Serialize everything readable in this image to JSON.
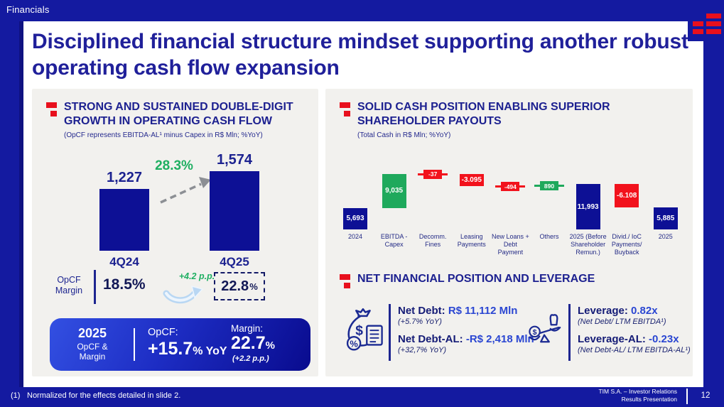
{
  "slide": {
    "section_label": "Financials"
  },
  "title": "Disciplined financial structure mindset supporting another robust operating cash flow expansion",
  "left_panel": {
    "heading": "STRONG AND SUSTAINED DOUBLE-DIGIT GROWTH IN OPERATING CASH FLOW",
    "subtitle": "(OpCF represents EBITDA-AL¹ minus Capex in R$ Mln; %YoY)",
    "margin_row": {
      "label": "OpCF Margin",
      "value_4q24": "18.5%",
      "delta": "+4.2 p.p.",
      "value_4q25": "22.8",
      "value_4q25_suffix": "%"
    },
    "summary_box": {
      "year": "2025",
      "caption_line1": "OpCF &",
      "caption_line2": "Margin",
      "opcf_label": "OpCF:",
      "opcf_value": "+15.7",
      "opcf_suffix": "% YoY",
      "margin_label": "Margin:",
      "margin_value": "22.7",
      "margin_suffix": "%",
      "margin_note": "(+2.2 p.p.)"
    }
  },
  "right_panel": {
    "heading": "SOLID CASH POSITION ENABLING SUPERIOR SHAREHOLDER PAYOUTS",
    "subtitle": "(Total Cash in R$ Mln; %YoY)",
    "nfp_heading": "NET FINANCIAL POSITION AND LEVERAGE",
    "metrics": {
      "net_debt_label": "Net Debt:",
      "net_debt_value": "R$ 11,112 Mln",
      "net_debt_note": "(+5.7% YoY)",
      "net_debt_al_label": "Net Debt-AL:",
      "net_debt_al_value": "-R$ 2,418 Mln",
      "net_debt_al_note": "(+32,7% YoY)",
      "leverage_label": "Leverage:",
      "leverage_value": "0.82x",
      "leverage_note": "(Net Debt/ LTM EBITDA¹)",
      "leverage_al_label": "Leverage-AL:",
      "leverage_al_value": "-0.23x",
      "leverage_al_note": "(Net Debt-AL/ LTM EBITDA-AL¹)"
    }
  },
  "chart_data": [
    {
      "type": "bar",
      "title": "Operating Cash Flow (OpCF = EBITDA-AL minus Capex, R$ Mln)",
      "categories": [
        "4Q24",
        "4Q25"
      ],
      "values": [
        1227,
        1574
      ],
      "value_labels": [
        "1,227",
        "1,574"
      ],
      "growth_yoy": "28.3%",
      "margin_series": {
        "label": "OpCF Margin",
        "values": [
          "18.5%",
          "22.8%"
        ],
        "delta": "+4.2 p.p."
      },
      "ylim": [
        0,
        1574
      ],
      "bar_color": "#0d1095",
      "grid": false
    },
    {
      "type": "waterfall",
      "title": "Total Cash (R$ Mln; %YoY)",
      "categories": [
        "2024",
        "EBITDA - Capex",
        "Decomm. Fines",
        "Leasing Payments",
        "New Loans + Debt Payment",
        "Others",
        "2025 (Before Shareholder Remun.)",
        "Divid./ IoC Payments/ Buyback",
        "2025"
      ],
      "values": [
        5693,
        9035,
        -37,
        -3095,
        -494,
        890,
        11993,
        -6108,
        5885
      ],
      "value_labels": [
        "5,693",
        "9,035",
        "-37",
        "-3.095",
        "-494",
        "890",
        "11,993",
        "-6.108",
        "5,885"
      ],
      "bar_types": [
        "total",
        "delta",
        "delta",
        "delta",
        "delta",
        "delta",
        "total",
        "delta",
        "total"
      ],
      "colors": {
        "total": "#0d1095",
        "positive": "#1fa95c",
        "negative": "#f2121c"
      },
      "grid": false
    }
  ],
  "footer": {
    "footnote_num": "(1)",
    "footnote": "Normalized for the effects detailed in slide 2.",
    "brand_line1": "TIM S.A. – Investor Relations",
    "brand_line2": "Results Presentation",
    "page_number": "12"
  },
  "icons": {
    "logo": "tim-logo-red-bars",
    "bullet": "red-squares-bullet",
    "growth_arrow": "dashed-up-right-arrow",
    "margin_arrow": "curved-up-arrow",
    "net_debt": "money-bag-with-percent-and-document",
    "leverage": "balance-scale-with-coin"
  },
  "colors": {
    "background": "#141aa0",
    "panel": "#f2f1ee",
    "navy": "#0d1095",
    "heading_blue": "#1d2190",
    "accent_red": "#e8101d",
    "green": "#1fa95c",
    "value_blue": "#2a46d2"
  }
}
